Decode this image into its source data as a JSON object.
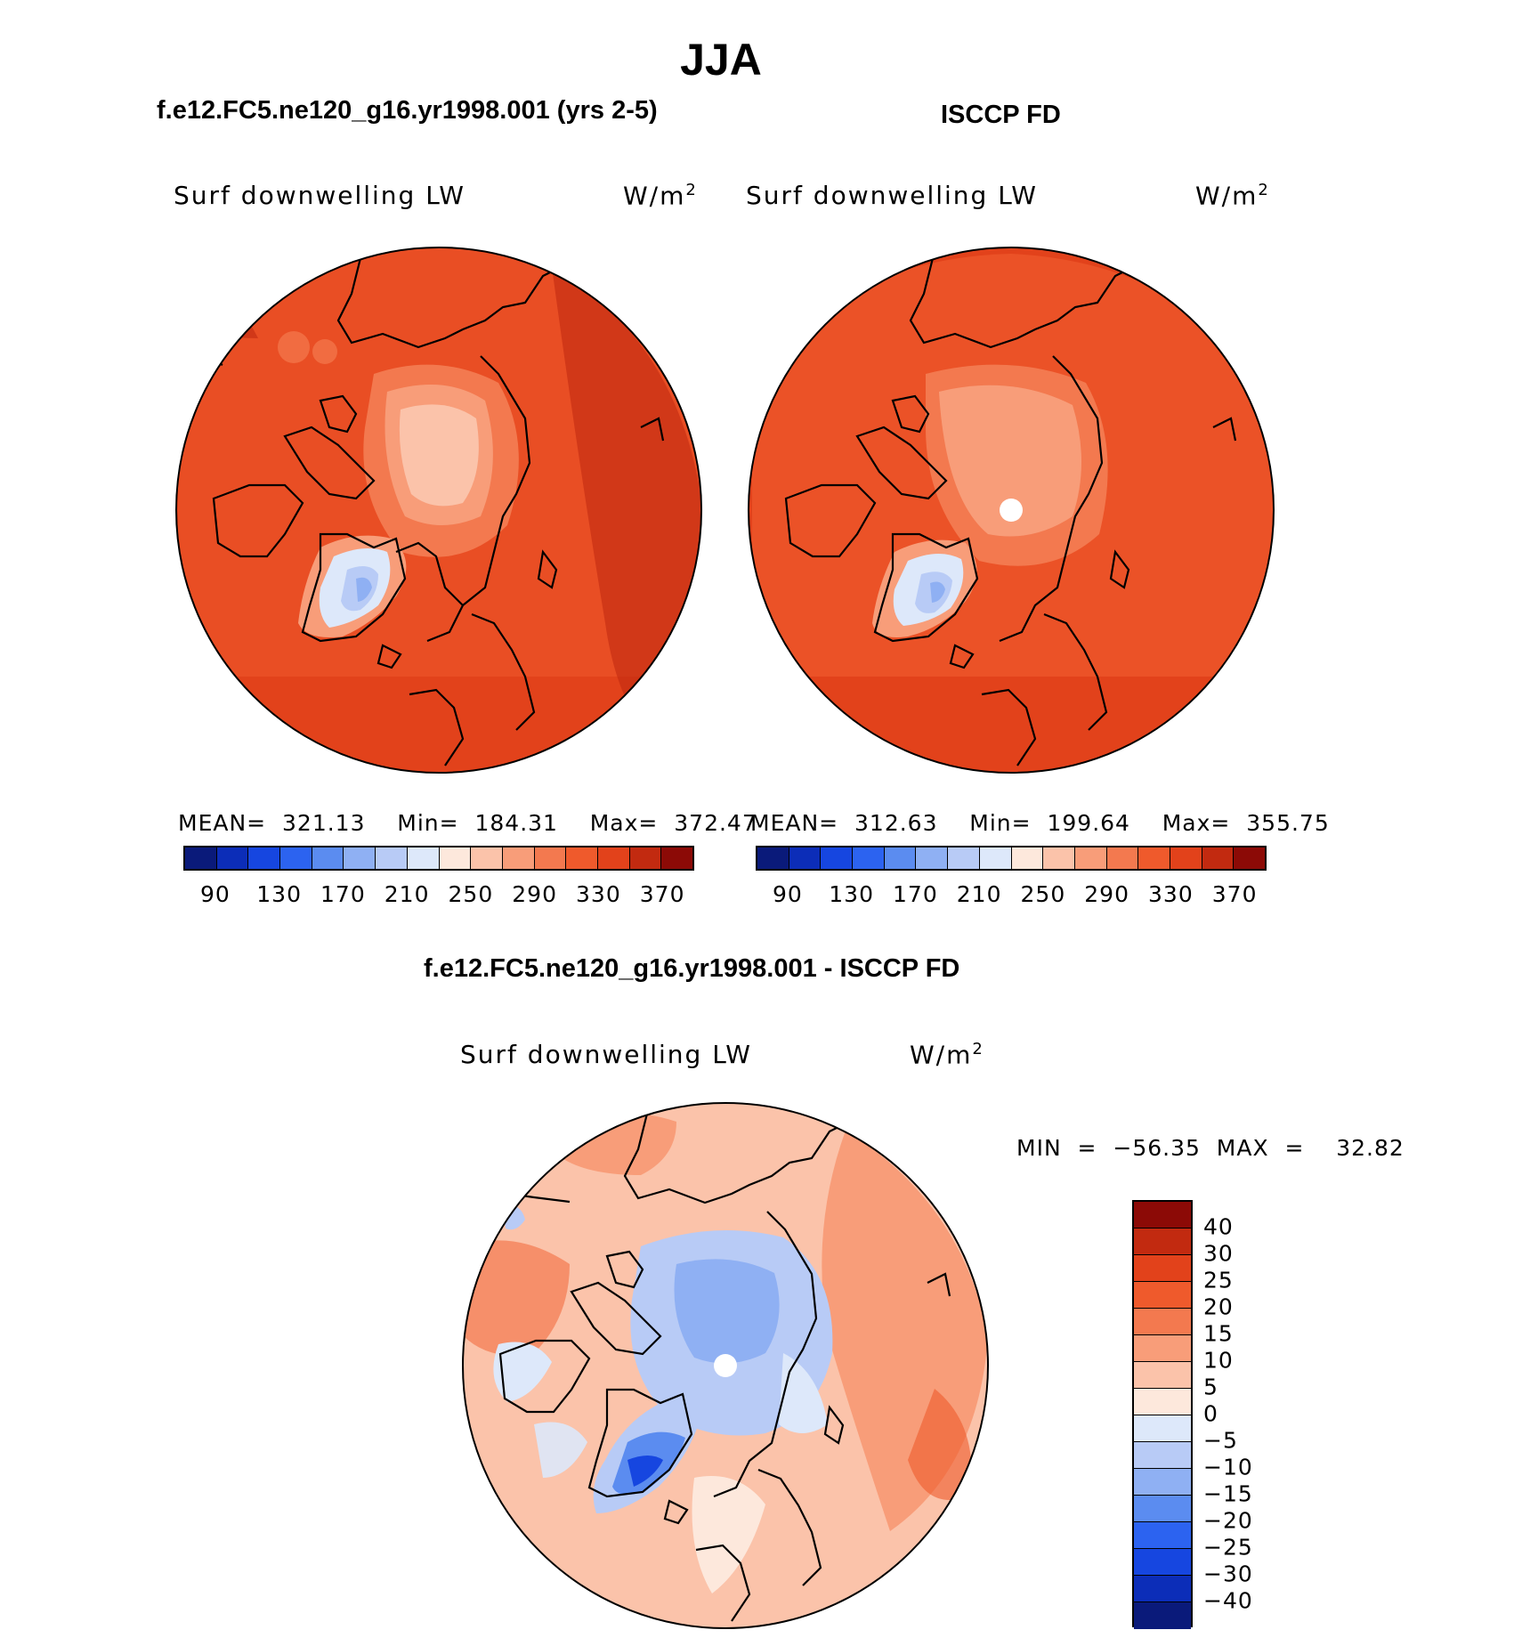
{
  "season": "JJA",
  "panels": {
    "model": {
      "case_title": "f.e12.FC5.ne120_g16.yr1998.001 (yrs 2-5)",
      "variable": "Surf downwelling LW",
      "units_base": "W/m",
      "units_exp": "2",
      "stats": "MEAN=  321.13    Min=  184.31    Max=  372.47"
    },
    "obs": {
      "case_title": "ISCCP FD",
      "variable": "Surf downwelling LW",
      "units_base": "W/m",
      "units_exp": "2",
      "stats": "MEAN=  312.63    Min=  199.64    Max=  355.75"
    },
    "diff": {
      "case_title": "f.e12.FC5.ne120_g16.yr1998.001 - ISCCP FD",
      "variable": "Surf downwelling LW",
      "units_base": "W/m",
      "units_exp": "2",
      "stats": "MIN  =  −56.35  MAX  =    32.82"
    }
  },
  "abs_colorbar": {
    "colors": [
      "#0a1a7a",
      "#0c2db8",
      "#1646e0",
      "#2c63f0",
      "#5b8cf0",
      "#8fb0f3",
      "#b8cbf6",
      "#dde8fa",
      "#fde8dc",
      "#fbc3aa",
      "#f89d79",
      "#f3794f",
      "#ef5a2c",
      "#e2421b",
      "#c22a10",
      "#8c0a06"
    ],
    "tick_labels": [
      "90",
      "130",
      "170",
      "210",
      "250",
      "290",
      "330",
      "370"
    ]
  },
  "diff_colorbar": {
    "colors": [
      "#8c0a06",
      "#c22a10",
      "#e2421b",
      "#ef5a2c",
      "#f3794f",
      "#f89d79",
      "#fbc3aa",
      "#fde8dc",
      "#dde8fa",
      "#b8cbf6",
      "#8fb0f3",
      "#5b8cf0",
      "#2c63f0",
      "#1646e0",
      "#0c2db8",
      "#0a1a7a"
    ],
    "tick_labels": [
      "40",
      "30",
      "25",
      "20",
      "15",
      "10",
      "5",
      "0",
      "−5",
      "−10",
      "−15",
      "−20",
      "−25",
      "−30",
      "−40"
    ]
  }
}
